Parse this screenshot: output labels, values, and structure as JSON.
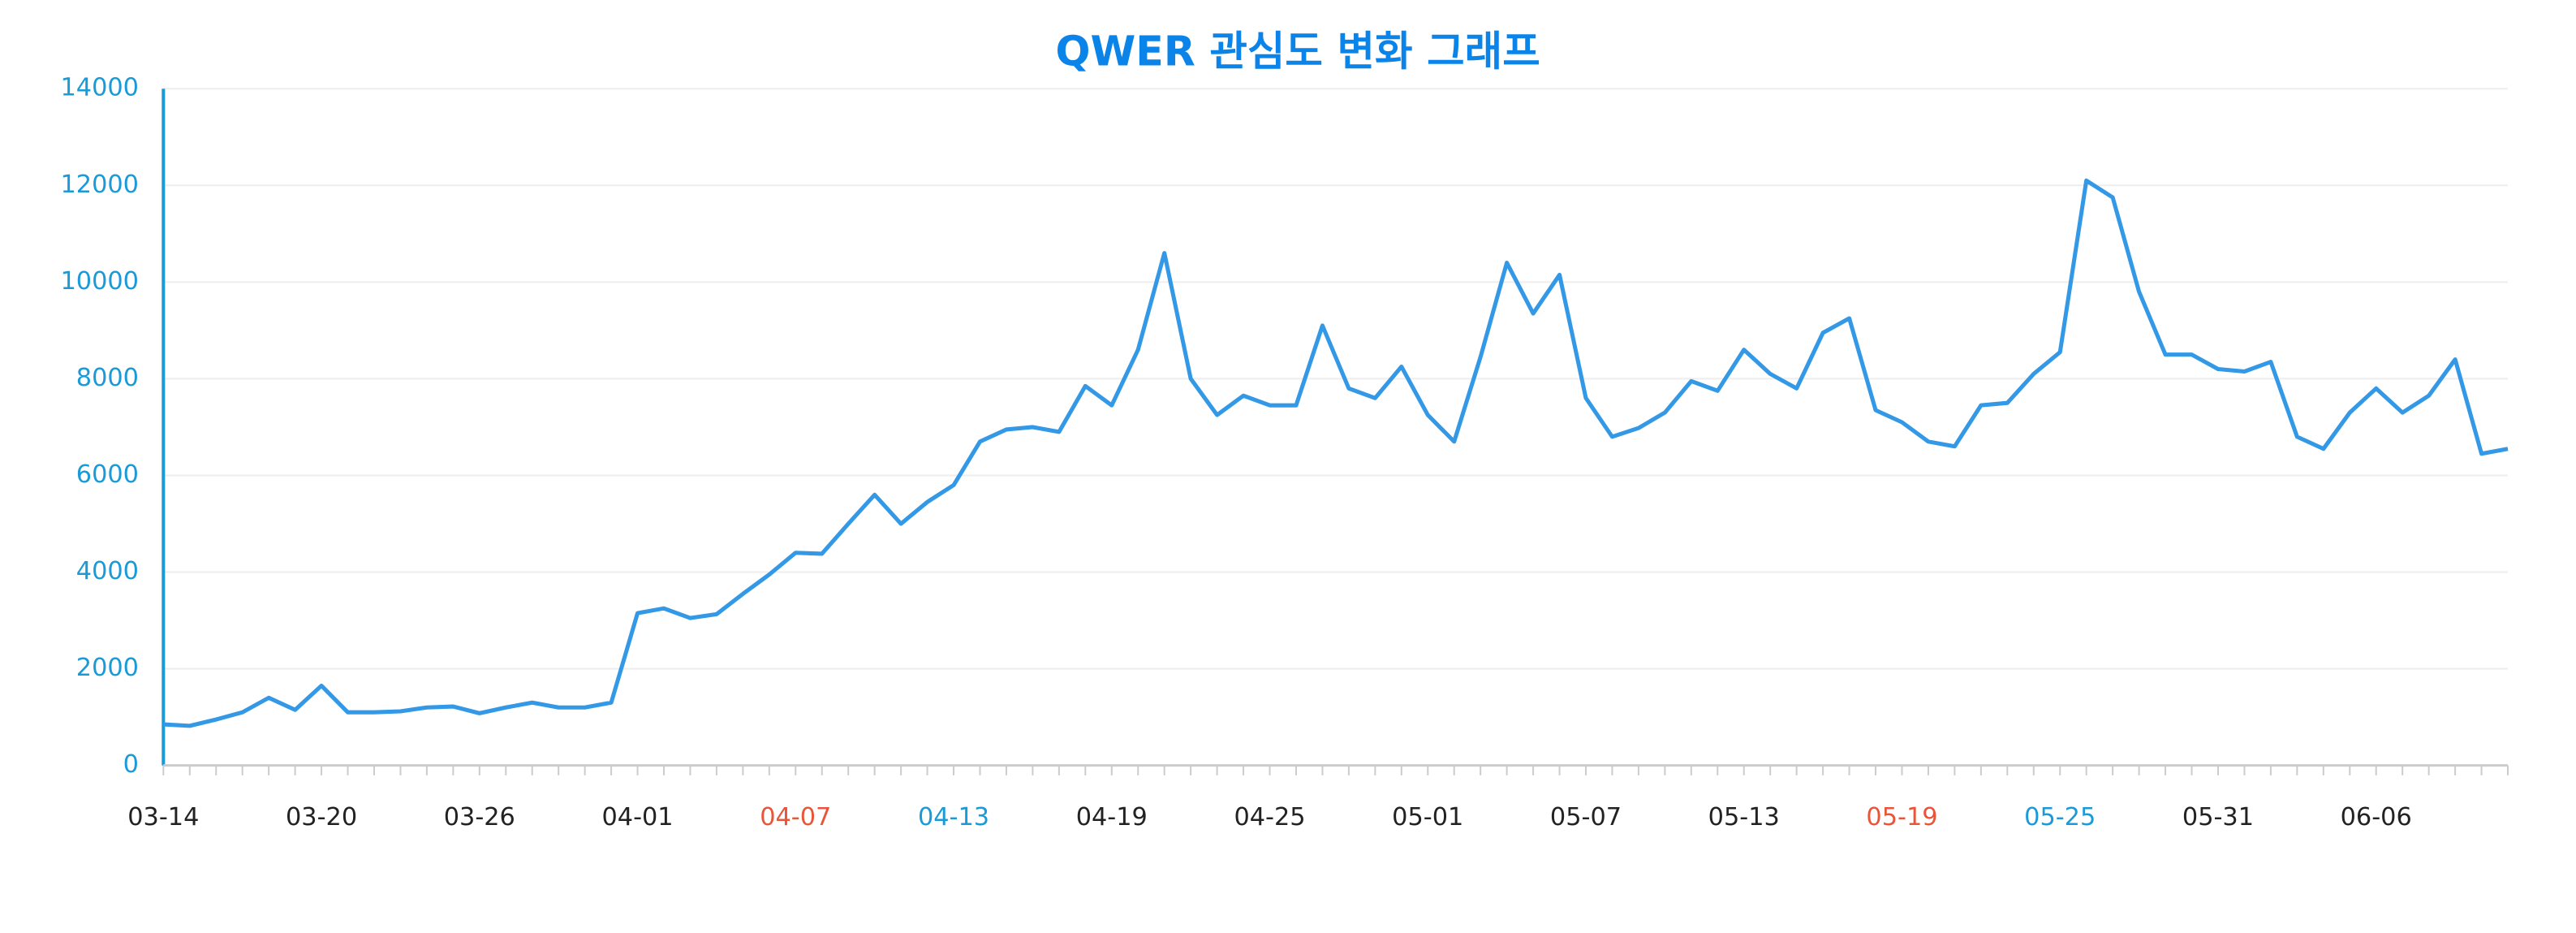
{
  "chart_data": {
    "type": "line",
    "title": "QWER 관심도 변화 그래프",
    "categories": [
      "03-14",
      null,
      null,
      null,
      null,
      null,
      "03-20",
      null,
      null,
      null,
      null,
      null,
      "03-26",
      null,
      null,
      null,
      null,
      null,
      "04-01",
      null,
      null,
      null,
      null,
      null,
      "04-07",
      null,
      null,
      null,
      null,
      null,
      "04-13",
      null,
      null,
      null,
      null,
      null,
      "04-19",
      null,
      null,
      null,
      null,
      null,
      "04-25",
      null,
      null,
      null,
      null,
      null,
      "05-01",
      null,
      null,
      null,
      null,
      null,
      "05-07",
      null,
      null,
      null,
      null,
      null,
      "05-13",
      null,
      null,
      null,
      null,
      null,
      "05-19",
      null,
      null,
      null,
      null,
      null,
      "05-25",
      null,
      null,
      null,
      null,
      null,
      "05-31",
      null,
      null,
      null,
      null,
      null,
      "06-06",
      null,
      null,
      null,
      null,
      null
    ],
    "category_colors": [
      "#222222",
      null,
      null,
      null,
      null,
      null,
      "#222222",
      null,
      null,
      null,
      null,
      null,
      "#222222",
      null,
      null,
      null,
      null,
      null,
      "#222222",
      null,
      null,
      null,
      null,
      null,
      "#e8553a",
      null,
      null,
      null,
      null,
      null,
      "#1a9bd7",
      null,
      null,
      null,
      null,
      null,
      "#222222",
      null,
      null,
      null,
      null,
      null,
      "#222222",
      null,
      null,
      null,
      null,
      null,
      "#222222",
      null,
      null,
      null,
      null,
      null,
      "#222222",
      null,
      null,
      null,
      null,
      null,
      "#222222",
      null,
      null,
      null,
      null,
      null,
      "#e8553a",
      null,
      null,
      null,
      null,
      null,
      "#1a9bd7",
      null,
      null,
      null,
      null,
      null,
      "#222222",
      null,
      null,
      null,
      null,
      null,
      "#222222",
      null,
      null,
      null,
      null,
      null
    ],
    "series": [
      {
        "color": "#3399e6",
        "values": [
          850,
          820,
          950,
          1100,
          1400,
          1150,
          1650,
          1100,
          1100,
          1120,
          1200,
          1220,
          1080,
          1200,
          1300,
          1200,
          1200,
          1300,
          3150,
          3250,
          3050,
          3130,
          3550,
          3950,
          4400,
          4380,
          5000,
          5600,
          5000,
          5450,
          5800,
          6700,
          6950,
          7000,
          6900,
          7850,
          7450,
          8600,
          10600,
          8000,
          7250,
          7650,
          7450,
          7450,
          9100,
          7800,
          7600,
          8250,
          7250,
          6700,
          8450,
          10400,
          9350,
          10150,
          7600,
          6800,
          6980,
          7300,
          7950,
          7750,
          8600,
          8100,
          7800,
          8950,
          9250,
          7350,
          7100,
          6700,
          6600,
          7450,
          7500,
          8100,
          8550,
          12100,
          11750,
          9800,
          8500,
          8500,
          8200,
          8150,
          8350,
          6800,
          6550,
          7300,
          7800,
          7300,
          7650,
          8400,
          6450,
          6550
        ]
      }
    ],
    "ylim": [
      0,
      14000
    ],
    "yticks": [
      0,
      2000,
      4000,
      6000,
      8000,
      10000,
      12000,
      14000
    ],
    "grid": true
  }
}
